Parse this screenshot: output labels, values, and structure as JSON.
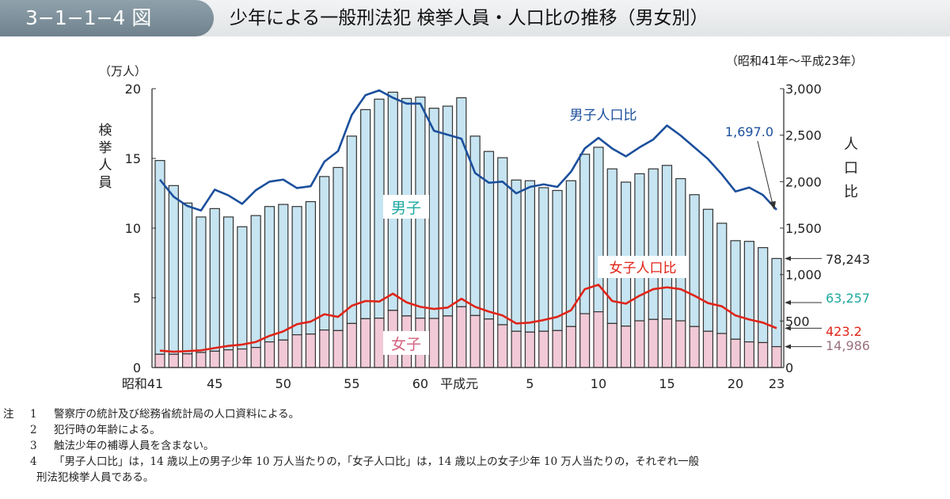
{
  "header": {
    "figure_number": "3−1−1−4 図",
    "title": "少年による一般刑法犯 検挙人員・人口比の推移（男女別）"
  },
  "chart_data": {
    "type": "bar+line",
    "period": "（昭和41年〜平成23年）",
    "left_axis": {
      "unit": "（万人）",
      "label": "検挙人員",
      "range": [
        0,
        20
      ],
      "ticks": [
        "0",
        "5",
        "10",
        "15",
        "20"
      ]
    },
    "right_axis": {
      "label": "人口比",
      "range": [
        0,
        3000
      ],
      "ticks": [
        "0",
        "500",
        "1,000",
        "1,500",
        "2,000",
        "2,500",
        "3,000"
      ]
    },
    "x_tick_labels": [
      {
        "index": 0,
        "label": "昭和41"
      },
      {
        "index": 4,
        "label": "45"
      },
      {
        "index": 9,
        "label": "50"
      },
      {
        "index": 14,
        "label": "55"
      },
      {
        "index": 19,
        "label": "60"
      },
      {
        "index": 23,
        "label": "平成元"
      },
      {
        "index": 27,
        "label": "5"
      },
      {
        "index": 32,
        "label": "10"
      },
      {
        "index": 37,
        "label": "15"
      },
      {
        "index": 42,
        "label": "20"
      },
      {
        "index": 45,
        "label": "23"
      }
    ],
    "years": [
      "S41",
      "S42",
      "S43",
      "S44",
      "S45",
      "S46",
      "S47",
      "S48",
      "S49",
      "S50",
      "S51",
      "S52",
      "S53",
      "S54",
      "S55",
      "S56",
      "S57",
      "S58",
      "S59",
      "S60",
      "S61",
      "S62",
      "S63",
      "H1",
      "H2",
      "H3",
      "H4",
      "H5",
      "H6",
      "H7",
      "H8",
      "H9",
      "H10",
      "H11",
      "H12",
      "H13",
      "H14",
      "H15",
      "H16",
      "H17",
      "H18",
      "H19",
      "H20",
      "H21",
      "H22",
      "H23"
    ],
    "total_arrests_10k": [
      14.85,
      13.05,
      11.8,
      10.8,
      11.4,
      10.8,
      10.1,
      10.9,
      11.55,
      11.7,
      11.55,
      11.9,
      13.7,
      14.35,
      16.6,
      18.5,
      19.25,
      19.75,
      19.3,
      19.4,
      18.6,
      18.75,
      19.35,
      16.6,
      15.5,
      15.05,
      13.45,
      13.4,
      12.9,
      12.7,
      13.4,
      15.3,
      15.8,
      14.25,
      13.3,
      13.9,
      14.25,
      14.5,
      13.55,
      12.4,
      11.35,
      10.35,
      9.1,
      9.05,
      8.6,
      7.82
    ],
    "female_arrests_10k": [
      0.95,
      0.95,
      0.98,
      1.08,
      1.17,
      1.27,
      1.33,
      1.44,
      1.84,
      1.97,
      2.35,
      2.4,
      2.69,
      2.65,
      3.16,
      3.5,
      3.54,
      4.1,
      3.7,
      3.54,
      3.52,
      3.7,
      4.36,
      3.73,
      3.48,
      3.07,
      2.6,
      2.54,
      2.6,
      2.65,
      2.94,
      3.86,
      4.0,
      3.16,
      2.97,
      3.35,
      3.45,
      3.48,
      3.35,
      2.94,
      2.6,
      2.44,
      2.03,
      1.84,
      1.79,
      1.5
    ],
    "male_rate": [
      2022,
      1838,
      1738,
      1690,
      1914,
      1852,
      1761,
      1908,
      2000,
      2022,
      1931,
      1951,
      2215,
      2329,
      2718,
      2931,
      2982,
      2903,
      2840,
      2840,
      2547,
      2505,
      2462,
      2093,
      1988,
      2000,
      1874,
      1943,
      1971,
      1943,
      2107,
      2357,
      2471,
      2357,
      2272,
      2369,
      2454,
      2604,
      2496,
      2369,
      2243,
      2079,
      1894,
      1937,
      1857,
      1697
    ],
    "female_rate": [
      182,
      170,
      176,
      185,
      210,
      233,
      247,
      275,
      341,
      389,
      466,
      494,
      573,
      545,
      665,
      716,
      710,
      795,
      701,
      653,
      630,
      645,
      740,
      653,
      602,
      560,
      474,
      483,
      511,
      545,
      616,
      843,
      891,
      716,
      687,
      773,
      843,
      863,
      843,
      773,
      693,
      659,
      560,
      517,
      483,
      423
    ],
    "series_labels": {
      "male": "男子",
      "female": "女子",
      "male_rate": "男子人口比",
      "female_rate": "女子人口比"
    },
    "annotations": {
      "male_rate_last": "1,697.0",
      "total_last": "78,243",
      "male_last": "63,257",
      "female_rate_last": "423.2",
      "female_last": "14,986"
    },
    "colors": {
      "male_bar": "#c6e4f1",
      "female_bar": "#f2c9d6",
      "male_rate": "#1b4f9c",
      "female_rate": "#e02418",
      "male_label": "#1fa9a0",
      "female_label": "#d4607e"
    }
  },
  "notes": {
    "prefix": "注",
    "items": [
      {
        "num": "1",
        "text": "警察庁の統計及び総務省統計局の人口資料による。"
      },
      {
        "num": "2",
        "text": "犯行時の年齢による。"
      },
      {
        "num": "3",
        "text": "触法少年の補導人員を含まない。"
      },
      {
        "num": "4",
        "text": "「男子人口比」は，14 歳以上の男子少年 10 万人当たりの，「女子人口比」は，14 歳以上の女子少年 10 万人当たりの，それぞれ一般"
      }
    ],
    "continuation": "刑法犯検挙人員である。"
  }
}
